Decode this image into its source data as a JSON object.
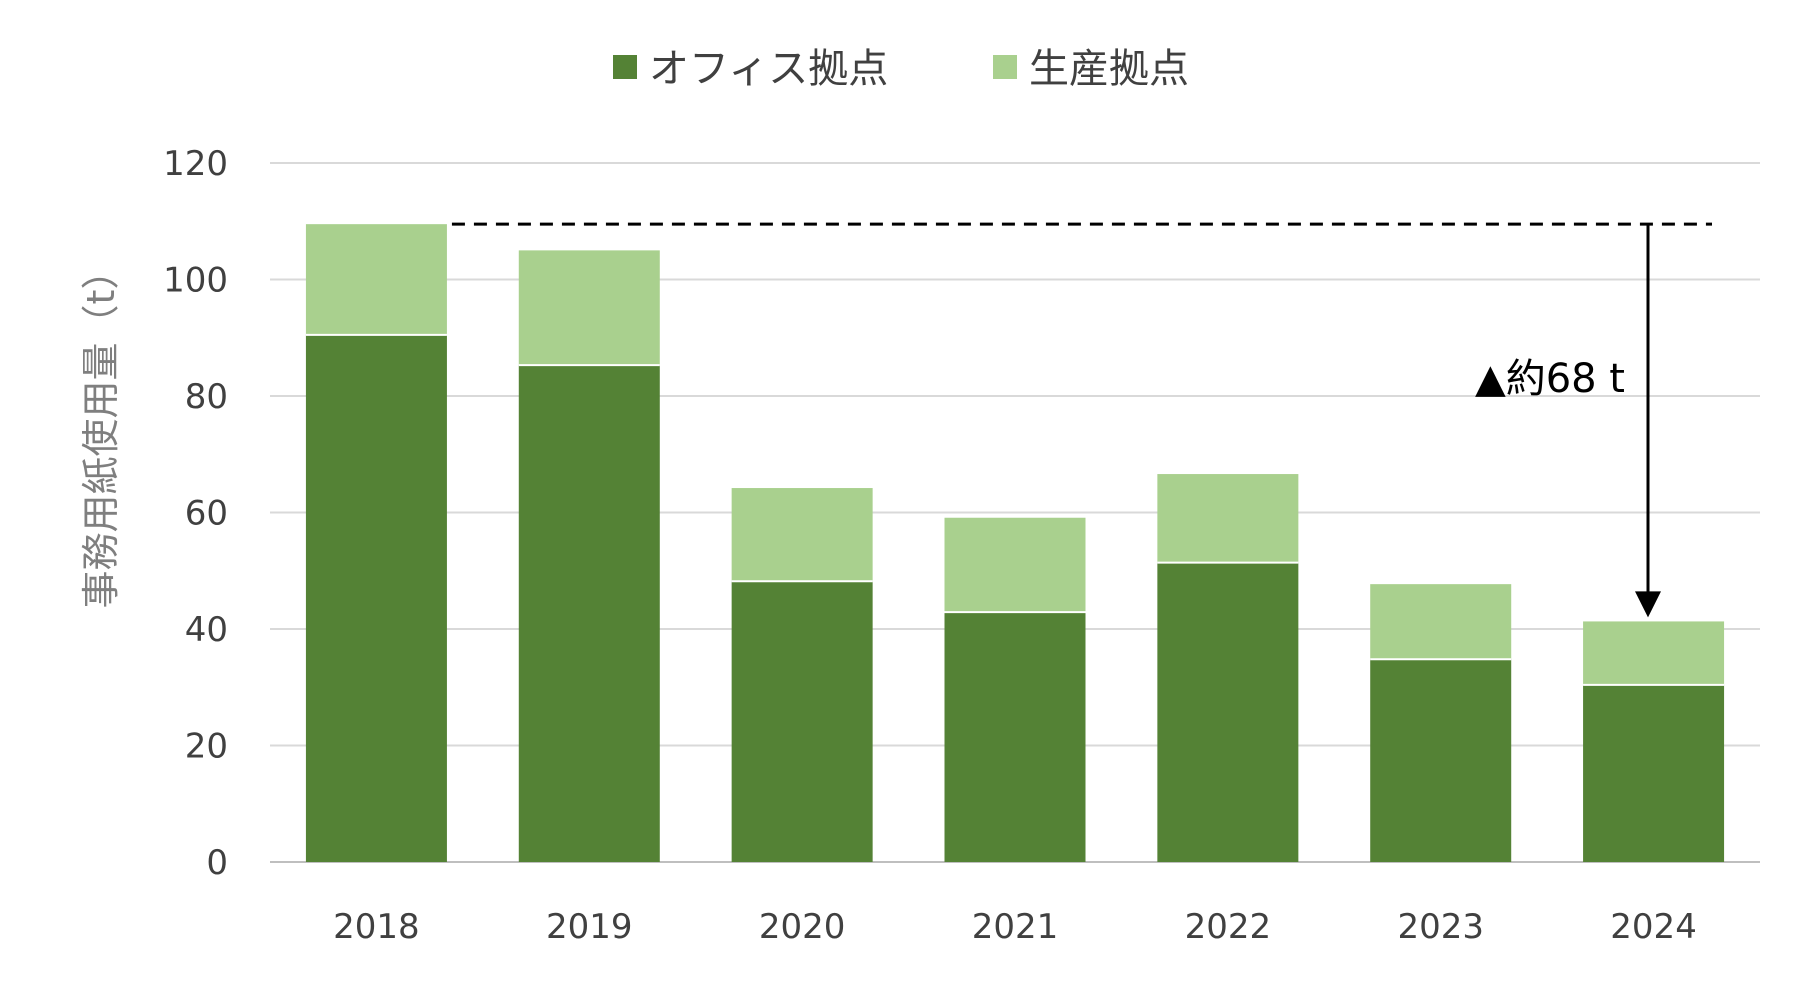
{
  "chart_data": {
    "type": "bar",
    "stacked": true,
    "categories": [
      "2018",
      "2019",
      "2020",
      "2021",
      "2022",
      "2023",
      "2024"
    ],
    "series": [
      {
        "name": "オフィス拠点",
        "color": "#548235",
        "values": [
          90.5,
          85.3,
          48.2,
          42.9,
          51.4,
          34.8,
          30.4
        ]
      },
      {
        "name": "生産拠点",
        "color": "#a9d08e",
        "values": [
          19.0,
          19.7,
          16.0,
          16.2,
          15.2,
          12.9,
          10.9
        ]
      }
    ],
    "ylabel": "事務用紙使用量（t）",
    "ylim": [
      0,
      120
    ],
    "yticks": [
      "0",
      "20",
      "40",
      "60",
      "80",
      "100",
      "120"
    ],
    "grid": true,
    "legend_position": "top",
    "annotation": {
      "text": "▲約68 t",
      "from_value": 109.5,
      "to_value": 41.3,
      "style": "dashed-line-with-arrow"
    }
  }
}
